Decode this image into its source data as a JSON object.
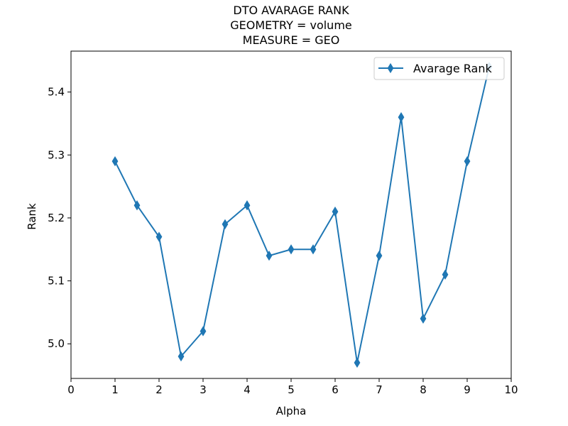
{
  "chart_data": {
    "type": "line",
    "title_lines": [
      "DTO AVARAGE RANK",
      "GEOMETRY = volume",
      "MEASURE = GEO"
    ],
    "xlabel": "Alpha",
    "ylabel": "Rank",
    "xlim": [
      0,
      10
    ],
    "ylim": [
      4.945,
      5.465
    ],
    "xticks": [
      0,
      1,
      2,
      3,
      4,
      5,
      6,
      7,
      8,
      9,
      10
    ],
    "xtick_labels": [
      "0",
      "1",
      "2",
      "3",
      "4",
      "5",
      "6",
      "7",
      "8",
      "9",
      "10"
    ],
    "yticks": [
      5.0,
      5.1,
      5.2,
      5.3,
      5.4
    ],
    "ytick_labels": [
      "5.0",
      "5.1",
      "5.2",
      "5.3",
      "5.4"
    ],
    "grid": false,
    "legend_position": "top-right",
    "series": [
      {
        "name": "Avarage Rank",
        "color": "#1f77b4",
        "marker": "thin-diamond",
        "x": [
          1,
          1.5,
          2,
          2.5,
          3,
          3.5,
          4,
          4.5,
          5,
          5.5,
          6,
          6.5,
          7,
          7.5,
          8,
          8.5,
          9,
          9.5
        ],
        "y": [
          5.29,
          5.22,
          5.17,
          4.98,
          5.02,
          5.19,
          5.22,
          5.14,
          5.15,
          5.15,
          5.21,
          4.97,
          5.14,
          5.36,
          5.04,
          5.11,
          5.29,
          5.44
        ]
      }
    ]
  }
}
